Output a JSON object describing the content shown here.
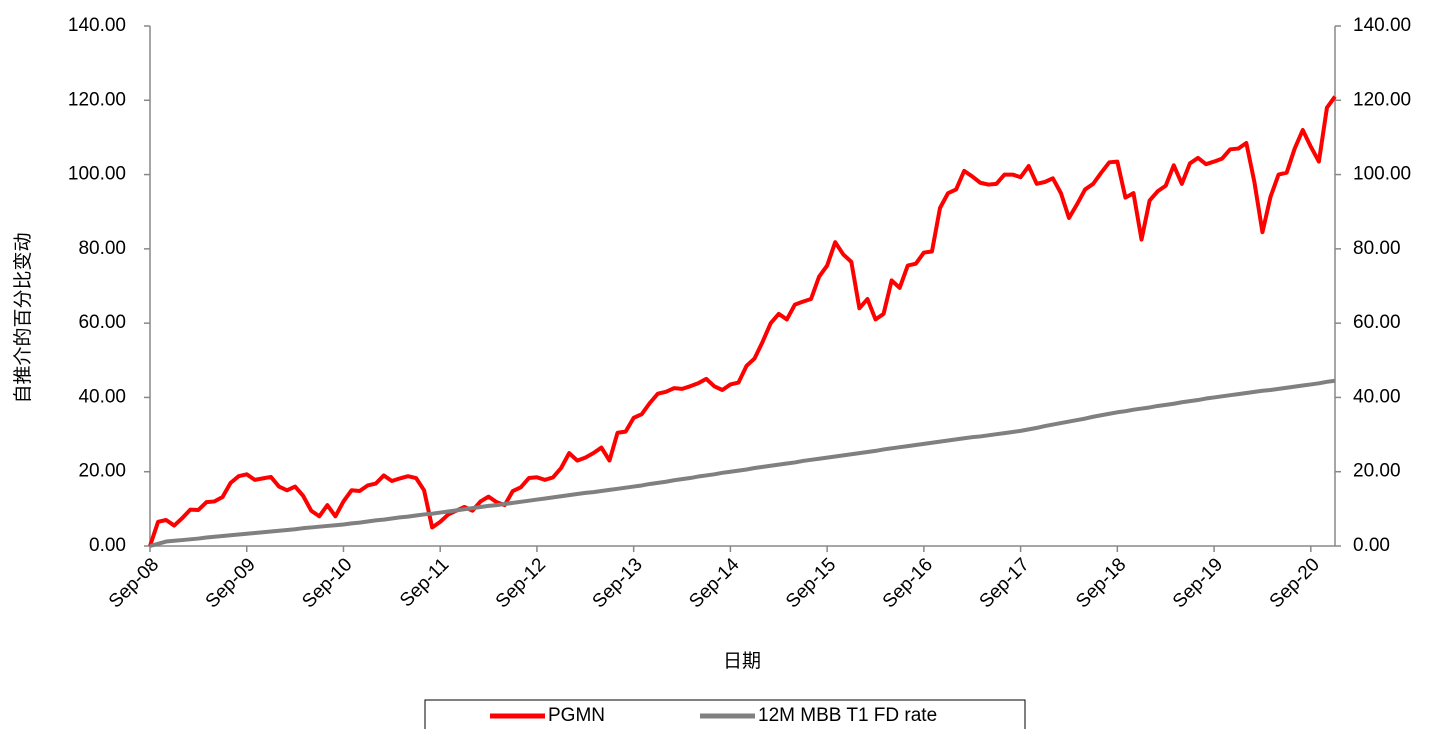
{
  "chart_data": {
    "type": "line",
    "y_label": "自推介的百分比变动",
    "x_label": "日期",
    "categories": [
      "Sep-08",
      null,
      null,
      null,
      null,
      null,
      null,
      null,
      null,
      null,
      null,
      null,
      "Sep-09",
      null,
      null,
      null,
      null,
      null,
      null,
      null,
      null,
      null,
      null,
      null,
      "Sep-10",
      null,
      null,
      null,
      null,
      null,
      null,
      null,
      null,
      null,
      null,
      null,
      "Sep-11",
      null,
      null,
      null,
      null,
      null,
      null,
      null,
      null,
      null,
      null,
      null,
      "Sep-12",
      null,
      null,
      null,
      null,
      null,
      null,
      null,
      null,
      null,
      null,
      null,
      "Sep-13",
      null,
      null,
      null,
      null,
      null,
      null,
      null,
      null,
      null,
      null,
      null,
      "Sep-14",
      null,
      null,
      null,
      null,
      null,
      null,
      null,
      null,
      null,
      null,
      null,
      "Sep-15",
      null,
      null,
      null,
      null,
      null,
      null,
      null,
      null,
      null,
      null,
      null,
      "Sep-16",
      null,
      null,
      null,
      null,
      null,
      null,
      null,
      null,
      null,
      null,
      null,
      "Sep-17",
      null,
      null,
      null,
      null,
      null,
      null,
      null,
      null,
      null,
      null,
      null,
      "Sep-18",
      null,
      null,
      null,
      null,
      null,
      null,
      null,
      null,
      null,
      null,
      null,
      "Sep-19",
      null,
      null,
      null,
      null,
      null,
      null,
      null,
      null,
      null,
      null,
      null,
      "Sep-20",
      null,
      null,
      null
    ],
    "series": [
      {
        "name": "PGMN",
        "color": "#ff0000",
        "values": [
          0,
          6.5,
          7,
          5.5,
          7.5,
          9.8,
          9.7,
          11.8,
          12,
          13.2,
          17,
          18.8,
          19.3,
          17.8,
          18.2,
          18.6,
          16,
          15,
          16,
          13.5,
          9.5,
          8,
          11,
          8,
          12,
          15,
          14.8,
          16.3,
          16.8,
          19,
          17.5,
          18.2,
          18.8,
          18.3,
          15,
          5,
          6.5,
          8.5,
          9.5,
          10.5,
          9.5,
          12,
          13.3,
          11.8,
          11,
          14.8,
          15.8,
          18.3,
          18.5,
          17.8,
          18.5,
          21,
          25,
          23,
          23.8,
          25,
          26.5,
          23,
          30.5,
          30.8,
          34.5,
          35.5,
          38.5,
          41,
          41.5,
          42.5,
          42.3,
          43,
          43.8,
          45,
          43,
          42,
          43.5,
          44,
          48.5,
          50.5,
          55,
          60,
          62.5,
          61,
          65,
          65.8,
          66.5,
          72.5,
          75.5,
          81.8,
          78.5,
          76.5,
          64,
          66.5,
          61,
          62.5,
          71.5,
          69.5,
          75.5,
          76,
          79,
          79.3,
          91,
          95,
          96,
          101,
          99.5,
          97.8,
          97.3,
          97.5,
          100,
          100,
          99.3,
          102.3,
          97.5,
          98,
          99,
          95,
          88.3,
          92,
          96,
          97.5,
          100.5,
          103.3,
          103.5,
          93.8,
          95,
          82.5,
          93,
          95.5,
          97,
          102.5,
          97.5,
          103,
          104.5,
          102.8,
          103.5,
          104.3,
          106.8,
          107,
          108.5,
          98,
          84.5,
          94,
          100,
          100.5,
          107,
          112,
          107.5,
          103.5,
          118,
          121
        ]
      },
      {
        "name": "12M MBB T1 FD rate",
        "color": "#808080",
        "axis": "y2",
        "values": [
          0,
          0.6,
          1.2,
          1.4,
          1.6,
          1.8,
          2.0,
          2.3,
          2.5,
          2.7,
          2.9,
          3.1,
          3.3,
          3.5,
          3.7,
          3.9,
          4.1,
          4.3,
          4.5,
          4.8,
          5.0,
          5.2,
          5.4,
          5.6,
          5.8,
          6.1,
          6.3,
          6.6,
          6.9,
          7.1,
          7.4,
          7.7,
          7.9,
          8.2,
          8.5,
          8.7,
          9.0,
          9.3,
          9.6,
          9.9,
          10.2,
          10.5,
          10.8,
          11.0,
          11.3,
          11.6,
          11.9,
          12.2,
          12.5,
          12.8,
          13.1,
          13.4,
          13.7,
          14.0,
          14.3,
          14.5,
          14.8,
          15.1,
          15.4,
          15.7,
          16.0,
          16.3,
          16.7,
          17.0,
          17.3,
          17.7,
          18.0,
          18.3,
          18.7,
          19.0,
          19.3,
          19.7,
          20.0,
          20.3,
          20.6,
          21.0,
          21.3,
          21.6,
          21.9,
          22.2,
          22.5,
          22.9,
          23.2,
          23.5,
          23.8,
          24.1,
          24.4,
          24.7,
          25.0,
          25.3,
          25.6,
          26.0,
          26.3,
          26.6,
          26.9,
          27.2,
          27.5,
          27.8,
          28.1,
          28.4,
          28.7,
          29.0,
          29.3,
          29.5,
          29.8,
          30.1,
          30.4,
          30.7,
          31.0,
          31.4,
          31.8,
          32.3,
          32.7,
          33.1,
          33.5,
          33.9,
          34.3,
          34.8,
          35.2,
          35.6,
          36.0,
          36.3,
          36.7,
          37.0,
          37.3,
          37.7,
          38.0,
          38.3,
          38.7,
          39.0,
          39.3,
          39.7,
          40.0,
          40.3,
          40.6,
          40.9,
          41.2,
          41.5,
          41.8,
          42.0,
          42.3,
          42.6,
          42.9,
          43.2,
          43.5,
          43.8,
          44.2,
          44.5
        ]
      }
    ],
    "ylim": [
      0,
      140
    ],
    "yticks": [
      {
        "value": 0,
        "label": "0.00"
      },
      {
        "value": 20,
        "label": "20.00"
      },
      {
        "value": 40,
        "label": "40.00"
      },
      {
        "value": 60,
        "label": "60.00"
      },
      {
        "value": 80,
        "label": "80.00"
      },
      {
        "value": 100,
        "label": "100.00"
      },
      {
        "value": 120,
        "label": "120.00"
      },
      {
        "value": 140,
        "label": "140.00"
      }
    ],
    "y2lim": [
      0,
      140
    ],
    "y2ticks": [
      {
        "value": 0,
        "label": "0.00"
      },
      {
        "value": 20,
        "label": "20.00"
      },
      {
        "value": 40,
        "label": "40.00"
      },
      {
        "value": 60,
        "label": "60.00"
      },
      {
        "value": 80,
        "label": "80.00"
      },
      {
        "value": 100,
        "label": "100.00"
      },
      {
        "value": 120,
        "label": "120.00"
      },
      {
        "value": 140,
        "label": "140.00"
      }
    ],
    "grid": false,
    "legend": "bottom"
  }
}
